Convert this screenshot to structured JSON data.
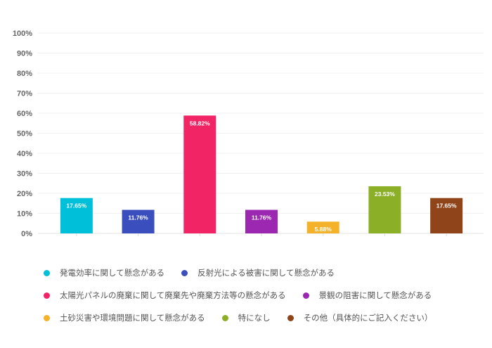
{
  "chart_data": {
    "type": "bar",
    "categories": [
      "発電効率に関して懸念がある",
      "反射光による被害に関して懸念がある",
      "太陽光パネルの廃棄に関して廃棄先や廃棄方法等の懸念がある",
      "景観の阻害に関して懸念がある",
      "土砂災害や環境問題に関して懸念がある",
      "特になし",
      "その他（具体的にご記入ください）"
    ],
    "values": [
      17.65,
      11.76,
      58.82,
      11.76,
      5.88,
      23.53,
      17.65
    ],
    "data_labels": [
      "17.65%",
      "11.76%",
      "58.82%",
      "11.76%",
      "5.88%",
      "23.53%",
      "17.65%"
    ],
    "colors": [
      "#00c0d9",
      "#3a4fbd",
      "#f12566",
      "#9c27b0",
      "#f4b22a",
      "#8baf27",
      "#8f4419"
    ],
    "yticks": [
      "0%",
      "10%",
      "20%",
      "30%",
      "40%",
      "50%",
      "60%",
      "70%",
      "80%",
      "90%",
      "100%"
    ],
    "ylim": [
      0,
      100
    ],
    "grid": true,
    "legend_placement": "bottom"
  }
}
